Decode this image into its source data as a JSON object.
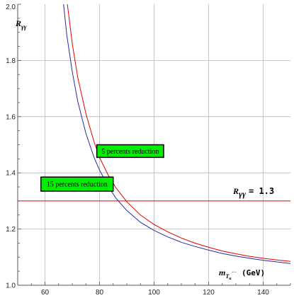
{
  "chart_data": {
    "type": "line",
    "title": "",
    "xlabel": "m",
    "xlabel_sub": "T",
    "xlabel_sub_sub": "u",
    "xlabel_sup": "−−",
    "xlabel_unit": "(GeV)",
    "ylabel": "R",
    "ylabel_sub": "γγ",
    "xlim": [
      50,
      150
    ],
    "ylim": [
      1.0,
      2.0
    ],
    "xticks": [
      60,
      80,
      100,
      120,
      140
    ],
    "yticks": [
      1.0,
      1.2,
      1.4,
      1.6,
      1.8,
      2.0
    ],
    "xtick_labels": [
      "60",
      "80",
      "100",
      "120",
      "140"
    ],
    "ytick_labels": [
      "1.0",
      "1.2",
      "1.4",
      "1.6",
      "1.8",
      "2.0"
    ],
    "grid": true,
    "series": [
      {
        "color": "#e00000",
        "x": [
          68.2,
          70,
          72,
          75,
          78,
          80,
          83,
          86,
          90,
          95,
          100,
          105,
          110,
          115,
          120,
          125,
          130,
          135,
          140,
          145,
          150
        ],
        "y": [
          2.0,
          1.86,
          1.74,
          1.61,
          1.51,
          1.455,
          1.395,
          1.347,
          1.297,
          1.25,
          1.216,
          1.19,
          1.168,
          1.15,
          1.135,
          1.122,
          1.112,
          1.103,
          1.096,
          1.09,
          1.085
        ]
      },
      {
        "color": "#2a2a9e",
        "x": [
          66.8,
          68,
          70,
          72,
          75,
          78,
          80,
          83,
          86,
          90,
          95,
          100,
          105,
          110,
          115,
          120,
          125,
          130,
          135,
          140,
          145,
          150
        ],
        "y": [
          2.0,
          1.89,
          1.76,
          1.655,
          1.54,
          1.455,
          1.41,
          1.355,
          1.31,
          1.266,
          1.224,
          1.195,
          1.172,
          1.153,
          1.138,
          1.125,
          1.113,
          1.104,
          1.096,
          1.089,
          1.083,
          1.077
        ]
      }
    ],
    "threshold": {
      "value": 1.3,
      "color": "#e00000",
      "label_symbol": "R",
      "label_sub": "γγ",
      "label_value": "= 1.3"
    },
    "annotations": [
      {
        "text": "5 percents reduction",
        "x0": 79,
        "x1": 103.5,
        "y0": 1.455,
        "y1": 1.5
      },
      {
        "text": "15 percents reduction",
        "x0": 58.5,
        "x1": 85,
        "y0": 1.335,
        "y1": 1.385
      }
    ],
    "annotation_fill": "#00ee00"
  }
}
